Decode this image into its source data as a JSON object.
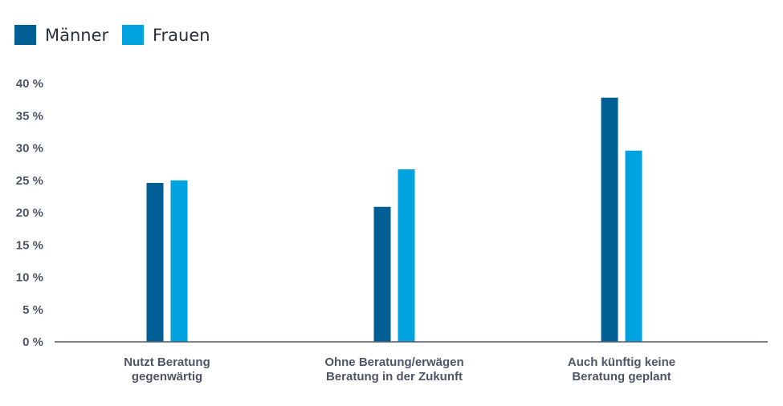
{
  "chart_data": {
    "type": "bar",
    "title": "",
    "xlabel": "",
    "ylabel": "",
    "ylim": [
      0,
      40
    ],
    "yticks": [
      0,
      5,
      10,
      15,
      20,
      25,
      30,
      35,
      40
    ],
    "ytick_labels": [
      "0 %",
      "5 %",
      "10 %",
      "15 %",
      "20 %",
      "25 %",
      "30 %",
      "35 %",
      "40 %"
    ],
    "grid": false,
    "legend_position": "top-left",
    "categories": [
      [
        "Nutzt Beratung",
        "gegenwärtig"
      ],
      [
        "Ohne Beratung/erwägen",
        "Beratung in der Zukunft"
      ],
      [
        "Auch künftig keine",
        "Beratung geplant"
      ]
    ],
    "series": [
      {
        "name": "Männer",
        "color": "#005f94",
        "values": [
          24.6,
          20.9,
          37.8
        ]
      },
      {
        "name": "Frauen",
        "color": "#00a3e0",
        "values": [
          25.0,
          26.7,
          29.6
        ]
      }
    ],
    "colors": {
      "axis": "#4f5566",
      "text": "#4f5566",
      "legend_text": "#2b2f38"
    }
  }
}
